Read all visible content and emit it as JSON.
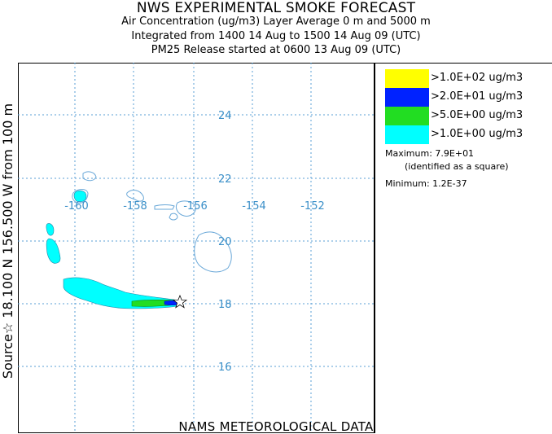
{
  "header": {
    "title": "NWS EXPERIMENTAL SMOKE FORECAST",
    "line1": "Air Concentration (ug/m3) Layer Average    0 m and  5000 m",
    "line2": "Integrated from 1400 14 Aug to 1500 14 Aug 09 (UTC)",
    "line3": "PM25 Release started at 0600 13 Aug 09 (UTC)"
  },
  "side_label": "Source☆ 18.100  N 156.500  W   from  100 m",
  "footer": "NAMS METEOROLOGICAL DATA",
  "map": {
    "lat_labels": [
      "24",
      "22",
      "20",
      "18",
      "16"
    ],
    "lon_labels": [
      "-160",
      "-158",
      "-156",
      "-154",
      "-152"
    ],
    "grid_color": "#5a9fd4",
    "label_color": "#3a8fc8",
    "coast_color": "#6aa8d8",
    "source_marker": "star-icon"
  },
  "legend": {
    "items": [
      {
        "label": ">1.0E+02 ug/m3",
        "color": "#ffff00"
      },
      {
        "label": ">2.0E+01 ug/m3",
        "color": "#0022ff"
      },
      {
        "label": ">5.0E+00 ug/m3",
        "color": "#22dd22"
      },
      {
        "label": ">1.0E+00 ug/m3",
        "color": "#00ffff"
      }
    ],
    "maximum": "Maximum: 7.9E+01",
    "max_note": "(identified as a square)",
    "minimum": "Minimum: 1.2E-37"
  }
}
